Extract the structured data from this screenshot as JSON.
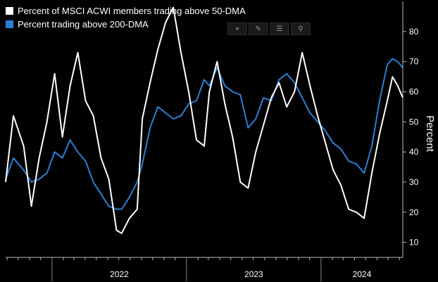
{
  "legend": {
    "white_label": "Percent of MSCI ACWI members trading above 50-DMA",
    "blue_label": "Percent trading above 200-DMA"
  },
  "toolbar": [
    {
      "name": "crosshair-icon",
      "glyph": "⌖"
    },
    {
      "name": "draw-pencil-icon",
      "glyph": "✎"
    },
    {
      "name": "data-table-icon",
      "glyph": "☰"
    },
    {
      "name": "zoom-icon",
      "glyph": "⚲"
    }
  ],
  "colors": {
    "background": "#000000",
    "series_50dma": "#ffffff",
    "series_200dma": "#2a7fd4"
  },
  "chart_data": {
    "type": "line",
    "ylabel": "Percent",
    "ylim": [
      5,
      90
    ],
    "yticks": [
      10,
      20,
      30,
      40,
      50,
      60,
      70,
      80
    ],
    "xlim": [
      "2021-08-28",
      "2024-08-10"
    ],
    "xtick_labels": [
      "2022",
      "2023",
      "2024"
    ],
    "y_axis_position": "right",
    "grid": false,
    "legend_position": "top-left",
    "series": [
      {
        "name": "Percent of MSCI ACWI members trading above 50-DMA",
        "color": "#ffffff",
        "points": [
          [
            "2021-08-28",
            30
          ],
          [
            "2021-09-18",
            52
          ],
          [
            "2021-10-16",
            42
          ],
          [
            "2021-11-06",
            22
          ],
          [
            "2021-11-27",
            38
          ],
          [
            "2021-12-18",
            50
          ],
          [
            "2022-01-08",
            66
          ],
          [
            "2022-01-29",
            45
          ],
          [
            "2022-02-19",
            62
          ],
          [
            "2022-03-12",
            73
          ],
          [
            "2022-04-02",
            57
          ],
          [
            "2022-04-23",
            52
          ],
          [
            "2022-05-14",
            38
          ],
          [
            "2022-06-04",
            31
          ],
          [
            "2022-06-25",
            14
          ],
          [
            "2022-07-09",
            13
          ],
          [
            "2022-07-30",
            18
          ],
          [
            "2022-08-20",
            21
          ],
          [
            "2022-09-03",
            51
          ],
          [
            "2022-09-24",
            63
          ],
          [
            "2022-10-15",
            74
          ],
          [
            "2022-11-05",
            83
          ],
          [
            "2022-11-26",
            88
          ],
          [
            "2022-12-17",
            73
          ],
          [
            "2023-01-07",
            60
          ],
          [
            "2023-01-28",
            44
          ],
          [
            "2023-02-18",
            42
          ],
          [
            "2023-03-04",
            60
          ],
          [
            "2023-03-25",
            70
          ],
          [
            "2023-04-15",
            56
          ],
          [
            "2023-05-06",
            45
          ],
          [
            "2023-05-27",
            30
          ],
          [
            "2023-06-17",
            28
          ],
          [
            "2023-07-08",
            40
          ],
          [
            "2023-07-29",
            49
          ],
          [
            "2023-08-19",
            58
          ],
          [
            "2023-09-09",
            63
          ],
          [
            "2023-09-30",
            55
          ],
          [
            "2023-10-21",
            60
          ],
          [
            "2023-11-11",
            73
          ],
          [
            "2023-12-02",
            62
          ],
          [
            "2023-12-23",
            52
          ],
          [
            "2024-01-13",
            43
          ],
          [
            "2024-02-03",
            34
          ],
          [
            "2024-02-24",
            29
          ],
          [
            "2024-03-16",
            21
          ],
          [
            "2024-04-06",
            20
          ],
          [
            "2024-04-27",
            18
          ],
          [
            "2024-05-18",
            33
          ],
          [
            "2024-06-08",
            46
          ],
          [
            "2024-06-29",
            57
          ],
          [
            "2024-07-13",
            65
          ],
          [
            "2024-07-27",
            62
          ],
          [
            "2024-08-10",
            58
          ]
        ]
      },
      {
        "name": "Percent trading above 200-DMA",
        "color": "#2a7fd4",
        "points": [
          [
            "2021-08-28",
            31
          ],
          [
            "2021-09-18",
            38
          ],
          [
            "2021-10-16",
            34
          ],
          [
            "2021-11-06",
            30
          ],
          [
            "2021-11-27",
            31
          ],
          [
            "2021-12-18",
            33
          ],
          [
            "2022-01-08",
            40
          ],
          [
            "2022-01-29",
            38
          ],
          [
            "2022-02-19",
            44
          ],
          [
            "2022-03-12",
            40
          ],
          [
            "2022-04-02",
            37
          ],
          [
            "2022-04-23",
            30
          ],
          [
            "2022-05-14",
            26
          ],
          [
            "2022-06-04",
            22
          ],
          [
            "2022-06-25",
            21
          ],
          [
            "2022-07-09",
            21
          ],
          [
            "2022-07-30",
            25
          ],
          [
            "2022-08-20",
            30
          ],
          [
            "2022-09-03",
            36
          ],
          [
            "2022-09-24",
            48
          ],
          [
            "2022-10-15",
            55
          ],
          [
            "2022-11-05",
            53
          ],
          [
            "2022-11-26",
            51
          ],
          [
            "2022-12-17",
            52
          ],
          [
            "2023-01-07",
            56
          ],
          [
            "2023-01-28",
            57
          ],
          [
            "2023-02-18",
            64
          ],
          [
            "2023-03-04",
            62
          ],
          [
            "2023-03-25",
            68
          ],
          [
            "2023-04-15",
            62
          ],
          [
            "2023-05-06",
            60
          ],
          [
            "2023-05-27",
            59
          ],
          [
            "2023-06-17",
            48
          ],
          [
            "2023-07-08",
            51
          ],
          [
            "2023-07-29",
            58
          ],
          [
            "2023-08-19",
            57
          ],
          [
            "2023-09-09",
            64
          ],
          [
            "2023-09-30",
            66
          ],
          [
            "2023-10-21",
            63
          ],
          [
            "2023-11-11",
            58
          ],
          [
            "2023-12-02",
            53
          ],
          [
            "2023-12-23",
            50
          ],
          [
            "2024-01-13",
            47
          ],
          [
            "2024-02-03",
            43
          ],
          [
            "2024-02-24",
            41
          ],
          [
            "2024-03-16",
            37
          ],
          [
            "2024-04-06",
            36
          ],
          [
            "2024-04-27",
            33
          ],
          [
            "2024-05-18",
            42
          ],
          [
            "2024-06-08",
            57
          ],
          [
            "2024-06-29",
            69
          ],
          [
            "2024-07-13",
            71
          ],
          [
            "2024-07-27",
            70
          ],
          [
            "2024-08-10",
            68
          ]
        ]
      }
    ]
  }
}
